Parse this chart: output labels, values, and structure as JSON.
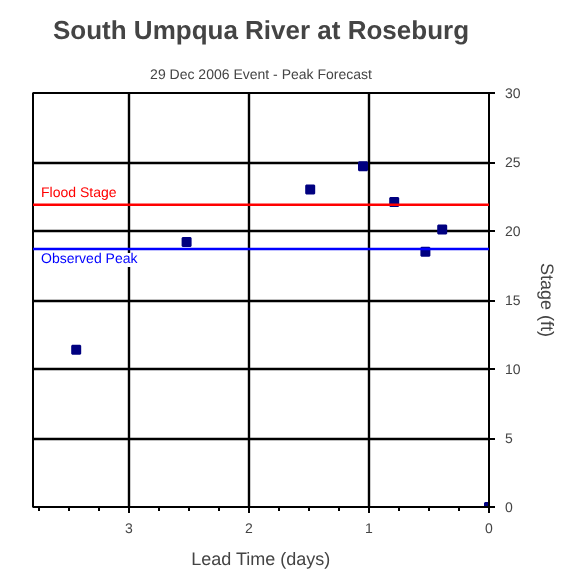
{
  "chart_data": {
    "type": "scatter",
    "title": "South Umpqua River at Roseburg",
    "subtitle": "29 Dec 2006 Event - Peak Forecast",
    "xlabel": "Lead Time (days)",
    "ylabel": "Stage (ft)",
    "x": [
      3.44,
      2.52,
      1.49,
      1.05,
      0.79,
      0.53,
      0.39,
      0
    ],
    "series": [
      {
        "color": "#000080",
        "values": [
          11.4,
          19.2,
          23.0,
          24.7,
          22.1,
          18.5,
          20.1,
          0
        ]
      }
    ],
    "marker": "square",
    "grid": true,
    "xlim": [
      3.8,
      0
    ],
    "xticks": [
      3,
      2,
      1,
      0
    ],
    "ylim": [
      0,
      30
    ],
    "yticks": [
      0,
      5,
      10,
      15,
      20,
      25,
      30
    ],
    "ref_lines": [
      {
        "axis": "y",
        "value": 21.9,
        "label": "Flood Stage",
        "color": "#ff0000"
      },
      {
        "axis": "y",
        "value": 18.7,
        "label": "Observed Peak",
        "color": "#0000ff"
      }
    ]
  }
}
